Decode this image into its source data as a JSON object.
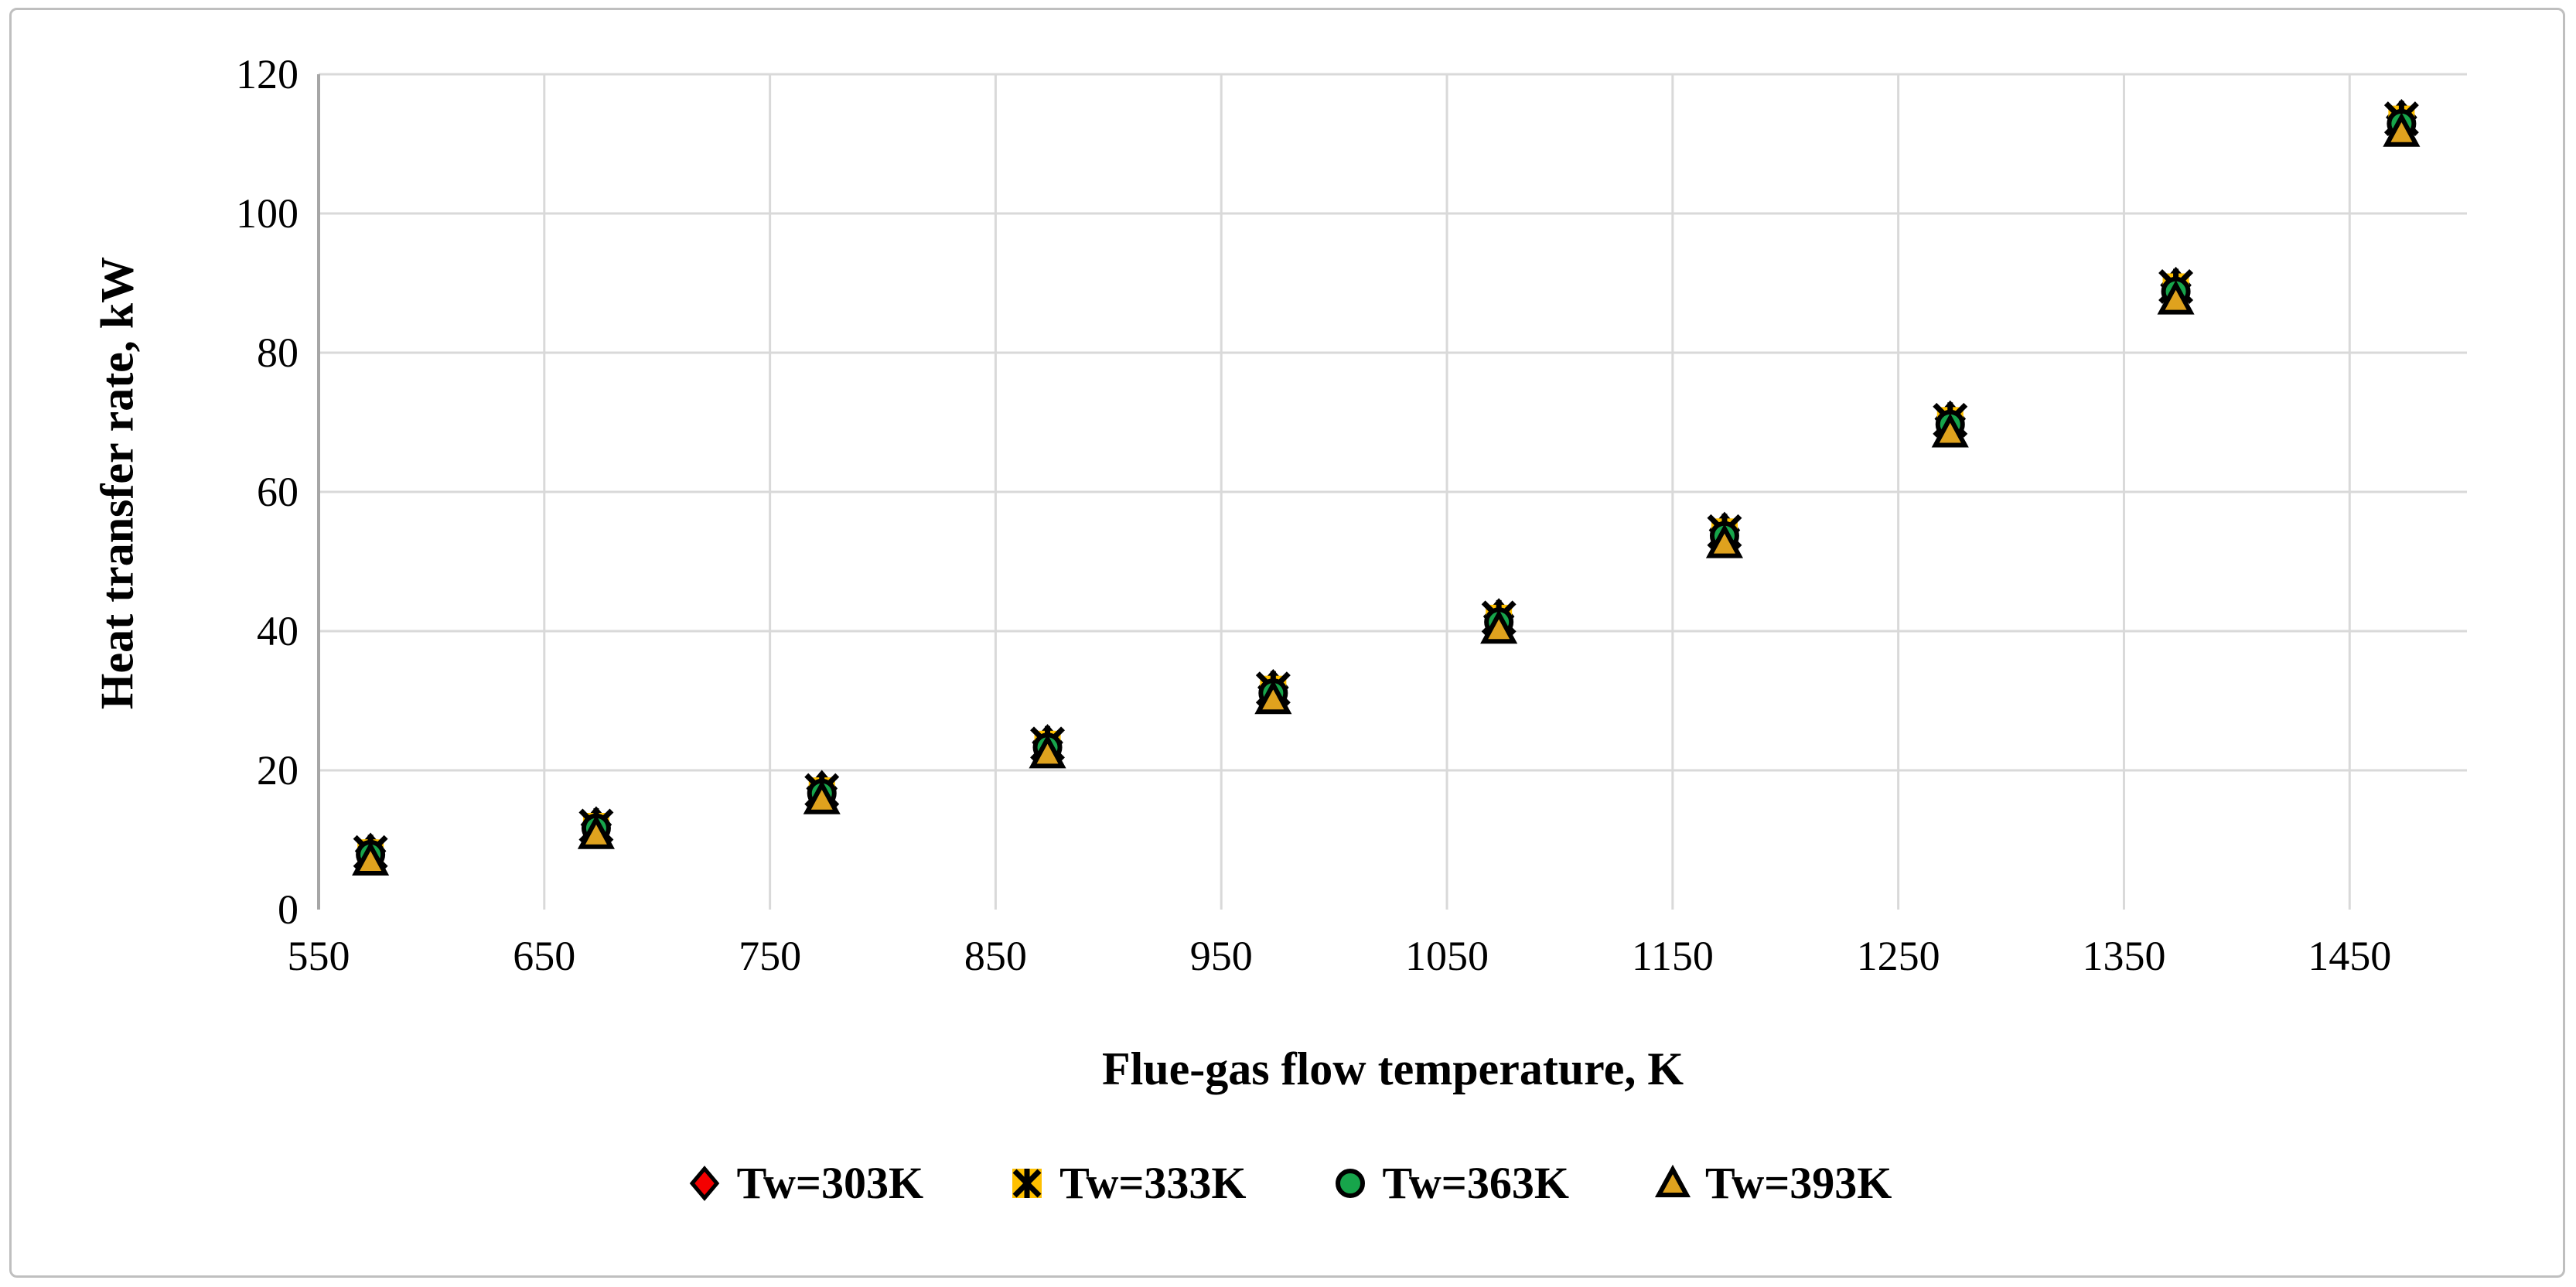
{
  "figure": {
    "background_color": "#ffffff",
    "border_color": "#bfbfbf"
  },
  "styles": {
    "gridline_color": "#d9d9d9",
    "axis_line_color": "#a6a6a6",
    "text_color": "#000000",
    "marker_outline_color": "#000000"
  },
  "chart_data": {
    "type": "scatter",
    "title": "",
    "xlabel": "Flue-gas flow temperature, K",
    "ylabel": "Heat transfer rate, kW",
    "xlim": [
      550,
      1502
    ],
    "ylim": [
      0,
      120
    ],
    "x_ticks": [
      550,
      650,
      750,
      850,
      950,
      1050,
      1150,
      1250,
      1350,
      1450
    ],
    "y_ticks": [
      0,
      20,
      40,
      60,
      80,
      100,
      120
    ],
    "grid": true,
    "legend_position": "bottom",
    "x": [
      573,
      673,
      773,
      873,
      973,
      1073,
      1173,
      1273,
      1373,
      1473
    ],
    "series": [
      {
        "name": "Tw=303K",
        "marker": "diamond",
        "color": "#f40000",
        "values": [
          8.4,
          12.2,
          17.4,
          24.0,
          31.9,
          42.1,
          54.5,
          70.5,
          89.7,
          113.8
        ]
      },
      {
        "name": "Tw=333K",
        "marker": "asterisk",
        "color": "#ffc000",
        "values": [
          8.2,
          12.0,
          17.1,
          23.8,
          31.7,
          41.9,
          54.3,
          70.3,
          89.5,
          113.6
        ]
      },
      {
        "name": "Tw=363K",
        "marker": "circle",
        "color": "#17a54b",
        "values": [
          7.9,
          11.7,
          16.7,
          23.3,
          31.1,
          41.3,
          53.7,
          69.7,
          88.8,
          112.9
        ]
      },
      {
        "name": "Tw=393K",
        "marker": "triangle",
        "color": "#dfa21e",
        "values": [
          7.0,
          10.8,
          15.8,
          22.4,
          30.2,
          40.3,
          52.6,
          68.5,
          87.6,
          111.7
        ]
      }
    ]
  }
}
